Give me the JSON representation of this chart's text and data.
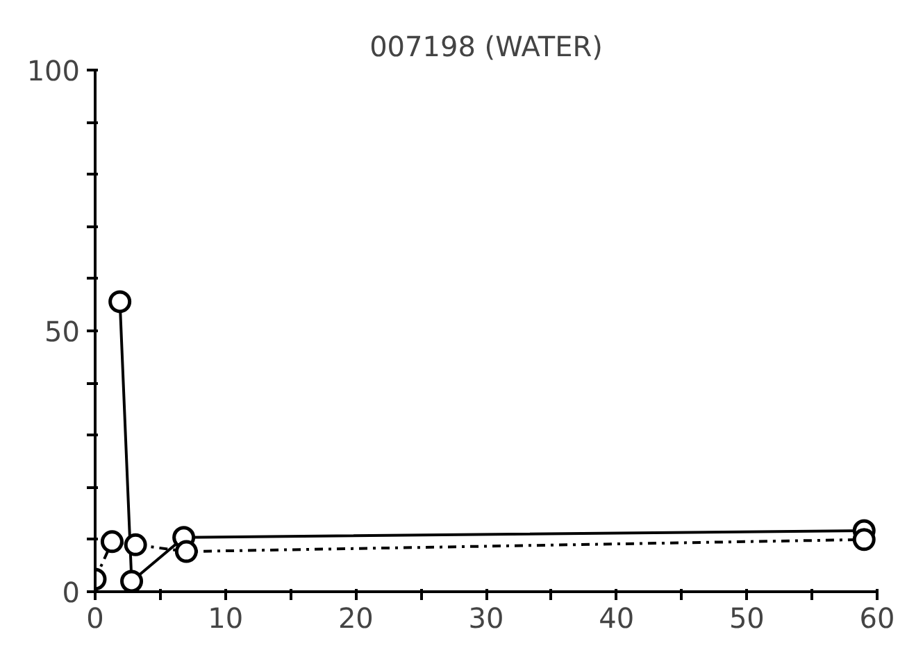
{
  "chart_data": {
    "type": "line",
    "title": "007198 (WATER)",
    "series": [
      {
        "color": "#000000",
        "line_style": "solid",
        "x": [
          1.9,
          2.8,
          6.8,
          59
        ],
        "values": [
          55.6,
          2,
          10.4,
          11.7
        ]
      },
      {
        "color": "#000000",
        "line_style": "dashdot",
        "x": [
          0,
          1.3,
          3.1,
          7.0,
          59
        ],
        "values": [
          2.4,
          9.6,
          9,
          7.7,
          10
        ]
      }
    ],
    "xlim": [
      0,
      60
    ],
    "ylim": [
      0,
      100
    ],
    "xticks": [
      0,
      {
        "value": 5,
        "label": null
      },
      10,
      {
        "value": 15,
        "label": null
      },
      20,
      {
        "value": 25,
        "label": null
      },
      30,
      {
        "value": 35,
        "label": null
      },
      40,
      {
        "value": 45,
        "label": null
      },
      50,
      {
        "value": 55,
        "label": null
      },
      60
    ],
    "yticks": [
      0,
      {
        "value": 10,
        "label": null
      },
      {
        "value": 20,
        "label": null
      },
      {
        "value": 30,
        "label": null
      },
      {
        "value": 40,
        "label": null
      },
      50,
      {
        "value": 60,
        "label": null
      },
      {
        "value": 70,
        "label": null
      },
      {
        "value": 80,
        "label": null
      },
      {
        "value": 90,
        "label": null
      },
      100
    ],
    "grid": false,
    "marker": "circle"
  }
}
